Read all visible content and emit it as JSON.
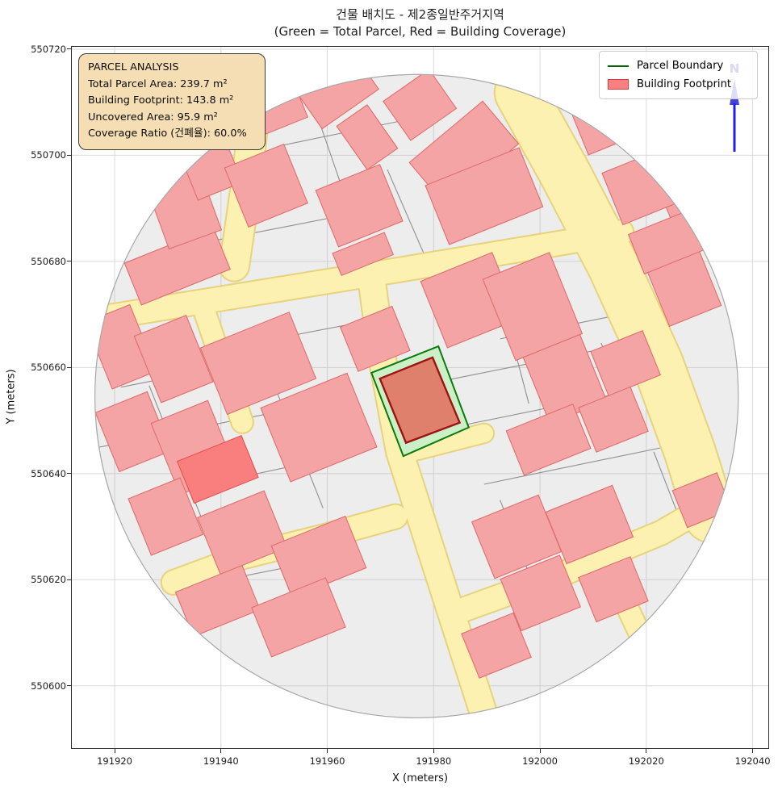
{
  "figure": {
    "title_line1": "건물 배치도 - 제2종일반주거지역",
    "title_line2": "(Green = Total Parcel, Red = Building Coverage)",
    "xlabel": "X (meters)",
    "ylabel": "Y (meters)"
  },
  "info_box": {
    "title": "PARCEL ANALYSIS",
    "lines": [
      "Total Parcel Area: 239.7 m²",
      "Building Footprint: 143.8 m²",
      "Uncovered Area: 95.9 m²",
      "Coverage Ratio (건폐율): 60.0%"
    ]
  },
  "legend": {
    "items": [
      {
        "label": "Parcel Boundary",
        "type": "line",
        "color": "#006400"
      },
      {
        "label": "Building Footprint",
        "type": "patch",
        "fill": "#f98080",
        "stroke": "#dd3c3c"
      }
    ]
  },
  "north_arrow": {
    "label": "N",
    "color": "#2222dd"
  },
  "chart_data": {
    "type": "map",
    "x_ticks": [
      191920,
      191940,
      191960,
      191980,
      192000,
      192020,
      192040
    ],
    "y_ticks": [
      550600,
      550620,
      550640,
      550660,
      550680,
      550700,
      550720
    ],
    "x_range": [
      191911.8,
      192043.1
    ],
    "y_range": [
      550588.1,
      550720.6
    ],
    "buffer_circle": {
      "cx": 191976.8,
      "cy": 550654.6,
      "r": 60.5
    },
    "target_parcel": {
      "points": [
        [
          191980.9,
          550664.0
        ],
        [
          191986.6,
          550648.7
        ],
        [
          191974.3,
          550643.3
        ],
        [
          191968.3,
          550659.0
        ]
      ],
      "area_m2": 239.7
    },
    "target_building": {
      "points": [
        [
          191979.8,
          550661.9
        ],
        [
          191984.9,
          550649.6
        ],
        [
          191974.8,
          550645.8
        ],
        [
          191969.9,
          550657.9
        ]
      ],
      "area_m2": 143.8
    },
    "roads": [
      {
        "pts": [
          [
            191916.7,
            550669.2
          ],
          [
            191972.8,
            550678.3
          ],
          [
            192004.7,
            550683.6
          ],
          [
            192015.3,
            550685.5
          ]
        ],
        "w": 5
      },
      {
        "pts": [
          [
            191996.3,
            550711.8
          ],
          [
            192004.7,
            550696.6
          ],
          [
            192013.8,
            550679.1
          ],
          [
            192022.1,
            550660.8
          ],
          [
            192028.2,
            550644.1
          ],
          [
            192032.0,
            550631.9
          ]
        ],
        "w": 10
      },
      {
        "pts": [
          [
            191947.3,
            550716.3
          ],
          [
            191944.7,
            550694.3
          ],
          [
            191942.5,
            550679.1
          ]
        ],
        "w": 6
      },
      {
        "pts": [
          [
            191937.1,
            550670.0
          ],
          [
            191944.0,
            550649.7
          ]
        ],
        "w": 4.5
      },
      {
        "pts": [
          [
            191968.3,
            550676.8
          ],
          [
            191970.5,
            550660.8
          ],
          [
            191973.6,
            550644.1
          ],
          [
            191980.4,
            550622.8
          ],
          [
            191989.2,
            550595.4
          ]
        ],
        "w": 5.5
      },
      {
        "pts": [
          [
            191931.1,
            550619.5
          ],
          [
            191944.0,
            550624.3
          ],
          [
            191959.2,
            550628.1
          ],
          [
            191972.8,
            550631.9
          ]
        ],
        "w": 5
      },
      {
        "pts": [
          [
            191985.7,
            550614.4
          ],
          [
            192004.7,
            550621.3
          ],
          [
            192022.9,
            550628.9
          ],
          [
            192032.0,
            550634.2
          ]
        ],
        "w": 5
      },
      {
        "pts": [
          [
            192012.3,
            550623.6
          ],
          [
            192019.1,
            550609.1
          ]
        ],
        "w": 4.5
      },
      {
        "pts": [
          [
            191975.8,
            550644.1
          ],
          [
            191989.5,
            550647.6
          ]
        ],
        "w": 4
      }
    ],
    "parcel_lines": [
      [
        [
          191921.2,
          550656.3
        ],
        [
          191950.0,
          550662.0
        ]
      ],
      [
        [
          191916.7,
          550644.9
        ],
        [
          191948.5,
          550651.2
        ]
      ],
      [
        [
          191923.5,
          550635.0
        ],
        [
          191962.2,
          550643.3
        ]
      ],
      [
        [
          191950.0,
          550665.4
        ],
        [
          191969.8,
          550669.2
        ]
      ],
      [
        [
          191975.8,
          550656.3
        ],
        [
          192012.3,
          550663.6
        ]
      ],
      [
        [
          191983.4,
          550648.7
        ],
        [
          192016.8,
          550655.5
        ]
      ],
      [
        [
          191989.5,
          550638.0
        ],
        [
          192022.9,
          550644.9
        ]
      ],
      [
        [
          191963.7,
          550679.1
        ],
        [
          192004.7,
          550684.9
        ]
      ],
      [
        [
          191992.5,
          550665.4
        ],
        [
          192013.8,
          550669.7
        ]
      ],
      [
        [
          191948.5,
          550660.5
        ],
        [
          191959.2,
          550633.5
        ]
      ],
      [
        [
          191926.5,
          550656.6
        ],
        [
          191937.1,
          550629.7
        ]
      ],
      [
        [
          191991.3,
          550678.3
        ],
        [
          191997.9,
          550653.2
        ]
      ],
      [
        [
          191997.9,
          550662.3
        ],
        [
          192003.2,
          550648.7
        ]
      ],
      [
        [
          192011.5,
          550664.6
        ],
        [
          192017.6,
          550650.2
        ]
      ],
      [
        [
          192004.7,
          550701.9
        ],
        [
          192011.5,
          550683.6
        ]
      ],
      [
        [
          191956.9,
          550711.0
        ],
        [
          191963.7,
          550691.2
        ]
      ],
      [
        [
          191992.5,
          550635.0
        ],
        [
          191997.9,
          550621.3
        ]
      ],
      [
        [
          192021.4,
          550644.1
        ],
        [
          192026.7,
          550630.4
        ]
      ],
      [
        [
          191931.8,
          550618.2
        ],
        [
          191962.2,
          550624.3
        ]
      ],
      [
        [
          191937.1,
          550683.6
        ],
        [
          191962.2,
          550688.5
        ]
      ],
      [
        [
          191951.6,
          550701.9
        ],
        [
          191977.4,
          550707.2
        ]
      ],
      [
        [
          191971.3,
          550697.3
        ],
        [
          191980.4,
          550676.3
        ]
      ]
    ],
    "buildings": [
      [
        191931.8,
        550679.1,
        18,
        8.5,
        22,
        0
      ],
      [
        191932.6,
        550691.2,
        10.5,
        15,
        20,
        0
      ],
      [
        191937.9,
        550698.1,
        9,
        10.5,
        22,
        0
      ],
      [
        191948.5,
        550694.3,
        12,
        12,
        22,
        0
      ],
      [
        191950.0,
        550709.5,
        10,
        9,
        22,
        0
      ],
      [
        191962.2,
        550711.8,
        13,
        7.5,
        35,
        0
      ],
      [
        191967.5,
        550703.4,
        7,
        10,
        35,
        0
      ],
      [
        191977.4,
        550709.5,
        10.5,
        9,
        35,
        0
      ],
      [
        191985.7,
        550700.4,
        18,
        10.5,
        40,
        0
      ],
      [
        191966.0,
        550690.5,
        13,
        11.5,
        22,
        0
      ],
      [
        191989.5,
        550692.3,
        19,
        12,
        22,
        0
      ],
      [
        191966.7,
        550681.4,
        10.5,
        4.5,
        22,
        0
      ],
      [
        191921.2,
        550663.9,
        9,
        13.5,
        22,
        0
      ],
      [
        191931.1,
        550661.6,
        10.5,
        13.5,
        22,
        0
      ],
      [
        191923.5,
        550647.9,
        10.5,
        12,
        22,
        0
      ],
      [
        191934.9,
        550644.9,
        11.5,
        14.5,
        22,
        0
      ],
      [
        191947.0,
        550660.8,
        18,
        13.5,
        22,
        0
      ],
      [
        191958.4,
        550648.7,
        17.5,
        15,
        22,
        0
      ],
      [
        191939.4,
        550640.8,
        13,
        8.5,
        22,
        1
      ],
      [
        191929.6,
        550631.9,
        10.5,
        11.5,
        22,
        0
      ],
      [
        191944.0,
        550628.9,
        13.5,
        11.5,
        22,
        0
      ],
      [
        191958.4,
        550624.3,
        15,
        10.5,
        22,
        0
      ],
      [
        191939.4,
        550616.0,
        13.5,
        9,
        22,
        0
      ],
      [
        191954.6,
        550612.9,
        15,
        10,
        22,
        0
      ],
      [
        191969.0,
        550665.4,
        10.5,
        9,
        22,
        0
      ],
      [
        191986.8,
        550672.7,
        14.5,
        13.5,
        22,
        0
      ],
      [
        191998.6,
        550671.5,
        13.5,
        16.5,
        22,
        0
      ],
      [
        192004.7,
        550657.8,
        11.5,
        13.5,
        22,
        0
      ],
      [
        192016.1,
        550660.8,
        10.5,
        9,
        22,
        0
      ],
      [
        192001.6,
        550646.4,
        13.5,
        9,
        22,
        0
      ],
      [
        192013.8,
        550650.2,
        10.5,
        9,
        22,
        0
      ],
      [
        192026.7,
        550676.0,
        10.5,
        13.5,
        22,
        0
      ],
      [
        192029.0,
        550691.2,
        10.5,
        12,
        22,
        0
      ],
      [
        192013.0,
        550706.5,
        12,
        9,
        22,
        0
      ],
      [
        192019.9,
        550694.3,
        13.5,
        10.5,
        22,
        0
      ],
      [
        192023.7,
        550683.6,
        12,
        8,
        22,
        0
      ],
      [
        191995.6,
        550628.1,
        13.5,
        11.5,
        22,
        0
      ],
      [
        192009.3,
        550630.4,
        13.5,
        10.5,
        22,
        0
      ],
      [
        192000.1,
        550617.5,
        12,
        10.5,
        22,
        0
      ],
      [
        192013.8,
        550618.2,
        10.5,
        9,
        22,
        0
      ],
      [
        191991.8,
        550607.6,
        10.5,
        9,
        22,
        0
      ],
      [
        192030.5,
        550635.0,
        9,
        7.5,
        22,
        0
      ]
    ],
    "colors": {
      "buffer_fill": "#ededed",
      "buffer_edge": "#a8a8a8",
      "grid": "#a0a0a0",
      "road_fill": "#fcf1b0",
      "road_edge": "#e7d37c",
      "parcel_line": "#8f8f8f",
      "building_fill": "#f4a4a4",
      "building_edge": "#e06e6e",
      "building_hl_fill": "#f97e7e",
      "building_hl_edge": "#e85050",
      "parcel_green_fill": "#cbefc7",
      "parcel_green_edge": "#0b7a0b",
      "footprint_fill": "#df806c",
      "footprint_edge": "#9e1212",
      "north": "#2222dd"
    }
  }
}
